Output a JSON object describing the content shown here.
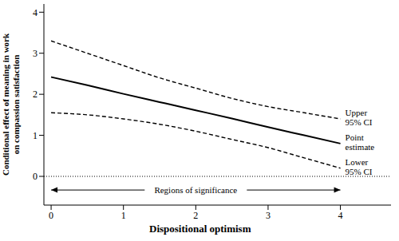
{
  "chart_data": {
    "type": "line",
    "x_label": "Dispositional optimism",
    "y_label": "Conditional effect of meaning in work on compassion satisfaction",
    "x": [
      0,
      0.5,
      1,
      1.5,
      2,
      2.5,
      3,
      3.5,
      4
    ],
    "series": [
      {
        "name": "Upper 95% CI",
        "color": "#000000",
        "line_style": "dashed",
        "values": [
          3.3,
          3.0,
          2.7,
          2.4,
          2.15,
          1.9,
          1.7,
          1.55,
          1.4
        ]
      },
      {
        "name": "Point estimate",
        "color": "#000000",
        "line_style": "solid",
        "values": [
          2.42,
          2.22,
          2.01,
          1.81,
          1.61,
          1.41,
          1.2,
          1.0,
          0.8
        ]
      },
      {
        "name": "Lower 95% CI",
        "color": "#000000",
        "line_style": "dashed",
        "values": [
          1.55,
          1.5,
          1.4,
          1.27,
          1.1,
          0.9,
          0.7,
          0.45,
          0.2
        ]
      }
    ],
    "xlim": [
      -0.1,
      4.7
    ],
    "ylim": [
      -0.7,
      4.2
    ],
    "xticks": [
      0,
      1,
      2,
      3,
      4
    ],
    "yticks": [
      0,
      1,
      2,
      3,
      4
    ],
    "reference_line": 0,
    "annotation": {
      "text": "Regions of significance",
      "x_range": [
        0,
        4
      ]
    },
    "grid": false
  }
}
